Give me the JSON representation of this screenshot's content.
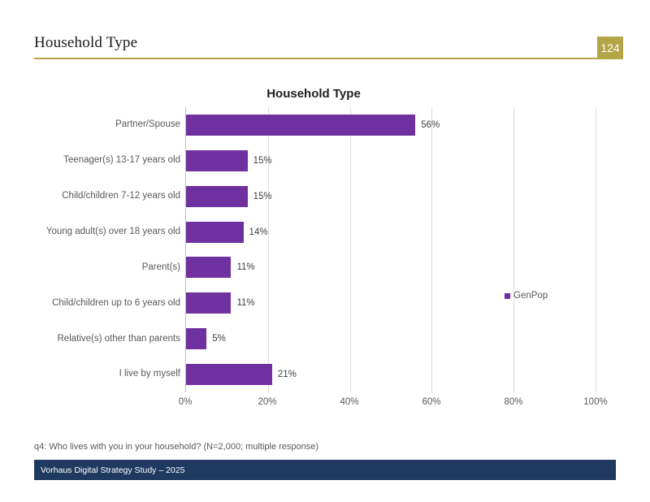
{
  "header": {
    "title": "Household Type",
    "page_number": "124"
  },
  "colors": {
    "accent_gold": "#b4a546",
    "bar_purple": "#7031a0",
    "banner_navy": "#1f3960",
    "gridline": "#dcdcdc",
    "label_gray": "#595959",
    "value_gray": "#404040"
  },
  "chart_data": {
    "type": "bar",
    "orientation": "horizontal",
    "title": "Household Type",
    "categories": [
      "Partner/Spouse",
      "Teenager(s) 13-17 years old",
      "Child/children 7-12 years old",
      "Young adult(s) over 18 years old",
      "Parent(s)",
      "Child/children up to 6 years old",
      "Relative(s) other than parents",
      "I live by myself"
    ],
    "values": [
      56,
      15,
      15,
      14,
      11,
      11,
      5,
      21
    ],
    "value_labels": [
      "56%",
      "15%",
      "15%",
      "14%",
      "11%",
      "11%",
      "5%",
      "21%"
    ],
    "xlabel": "",
    "ylabel": "",
    "xlim": [
      0,
      100
    ],
    "x_ticks": [
      "0%",
      "20%",
      "40%",
      "60%",
      "80%",
      "100%"
    ],
    "grid": true,
    "legend": [
      {
        "label": "GenPop",
        "color": "#7031a0"
      }
    ],
    "legend_position": "right-inside"
  },
  "footer": {
    "note": "q4: Who lives with you in your household? (N=2,000; multiple response)",
    "banner": "Vorhaus Digital Strategy Study – 2025"
  }
}
